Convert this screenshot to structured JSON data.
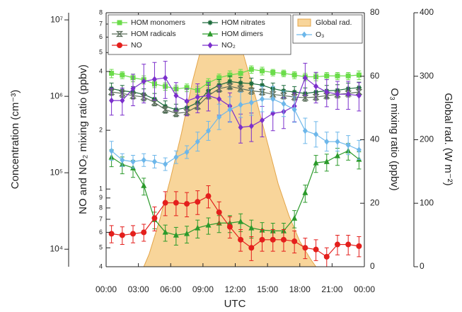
{
  "chart_data": {
    "type": "line",
    "xlabel": "UTC",
    "ylabel": "Concentration (cm⁻³)",
    "y2label": "NO and NO₂ mixing ratio (ppbv)",
    "y3label": "O₃ mixing ratio (ppbv)",
    "y4label": "Global rad. (W m⁻²)",
    "xlim": [
      0,
      24
    ],
    "xticks": [
      {
        "value": 0,
        "label": "00:00"
      },
      {
        "value": 3,
        "label": "03:00"
      },
      {
        "value": 6,
        "label": "06:00"
      },
      {
        "value": 9,
        "label": "09:00"
      },
      {
        "value": 12,
        "label": "12:00"
      },
      {
        "value": 15,
        "label": "15:00"
      },
      {
        "value": 18,
        "label": "18:00"
      },
      {
        "value": 21,
        "label": "21:00"
      },
      {
        "value": 24,
        "label": "00:00"
      }
    ],
    "ylim": [
      5900,
      12400000
    ],
    "ylog": true,
    "yticks": [
      {
        "value": 10000,
        "label": "10⁴"
      },
      {
        "value": 100000,
        "label": "10⁵"
      },
      {
        "value": 1000000,
        "label": "10⁶"
      },
      {
        "value": 10000000,
        "label": "10⁷"
      }
    ],
    "y2lim": [
      0.4,
      8
    ],
    "y2log": true,
    "y2ticks": [
      {
        "value": 0.4,
        "label": "4"
      },
      {
        "value": 0.5,
        "label": "5"
      },
      {
        "value": 0.6,
        "label": "6"
      },
      {
        "value": 0.7,
        "label": "7"
      },
      {
        "value": 0.8,
        "label": "8"
      },
      {
        "value": 0.9,
        "label": "9"
      },
      1,
      2,
      4,
      5,
      6,
      7,
      8
    ],
    "y3lim": [
      0,
      80
    ],
    "y3ticks": [
      0,
      20,
      40,
      60,
      80
    ],
    "y4lim": [
      0,
      400
    ],
    "y4ticks": [
      0,
      100,
      200,
      300,
      400
    ],
    "x": [
      0.5,
      1.5,
      2.5,
      3.5,
      4.5,
      5.5,
      6.5,
      7.5,
      8.5,
      9.5,
      10.5,
      11.5,
      12.5,
      13.5,
      14.5,
      15.5,
      16.5,
      17.5,
      18.5,
      19.5,
      20.5,
      21.5,
      22.5,
      23.5
    ],
    "series": [
      {
        "name": "Global rad.",
        "type": "area",
        "axis": "y4",
        "color": "#e3a54a",
        "fill": "#f8d59a",
        "x": [
          3.5,
          4,
          5,
          6,
          7,
          8,
          9,
          9.7,
          10.5,
          11,
          12,
          12.5,
          13,
          14,
          15,
          16,
          17,
          18,
          19,
          19.5
        ],
        "values": [
          0,
          20,
          75,
          140,
          210,
          290,
          355,
          395,
          380,
          340,
          355,
          350,
          320,
          260,
          195,
          130,
          80,
          40,
          12,
          0
        ]
      },
      {
        "name": "HOM monomers",
        "axis": "y",
        "marker": "square",
        "color": "#6bdc4a",
        "values": [
          2000000,
          1900000,
          1750000,
          1650000,
          1450000,
          1350000,
          1250000,
          1300000,
          1200000,
          1500000,
          1750000,
          1900000,
          2000000,
          2250000,
          2150000,
          2050000,
          2000000,
          1900000,
          1800000,
          1800000,
          1850000,
          1850000,
          1850000,
          1900000
        ],
        "errors": [
          250000,
          200000,
          200000,
          200000,
          150000,
          150000,
          150000,
          150000,
          150000,
          200000,
          200000,
          250000,
          250000,
          250000,
          250000,
          200000,
          200000,
          200000,
          200000,
          200000,
          200000,
          200000,
          200000,
          250000
        ]
      },
      {
        "name": "HOM nitrates",
        "axis": "y",
        "marker": "asterisk",
        "color": "#1d6b3c",
        "values": [
          1260000,
          1180000,
          1140000,
          1060000,
          920000,
          740000,
          670000,
          710000,
          830000,
          1180000,
          1400000,
          1560000,
          1500000,
          1470000,
          1400000,
          1260000,
          1180000,
          1140000,
          1090000,
          1140000,
          1180000,
          1200000,
          1260000,
          1300000
        ],
        "errors": [
          230000,
          210000,
          200000,
          190000,
          170000,
          130000,
          120000,
          130000,
          150000,
          210000,
          250000,
          280000,
          270000,
          260000,
          250000,
          230000,
          210000,
          200000,
          200000,
          200000,
          210000,
          220000,
          230000,
          230000
        ]
      },
      {
        "name": "HOM radicals",
        "axis": "y",
        "marker": "hourglass",
        "color": "#5b6e5b",
        "values": [
          1140000,
          1090000,
          1020000,
          980000,
          830000,
          670000,
          600000,
          620000,
          740000,
          1020000,
          1260000,
          1350000,
          1260000,
          1180000,
          1140000,
          1060000,
          1020000,
          980000,
          960000,
          980000,
          1020000,
          1060000,
          1090000,
          1140000
        ],
        "errors": [
          110000,
          110000,
          100000,
          100000,
          80000,
          70000,
          60000,
          60000,
          70000,
          100000,
          130000,
          130000,
          130000,
          120000,
          110000,
          110000,
          100000,
          100000,
          100000,
          100000,
          100000,
          110000,
          110000,
          110000
        ]
      },
      {
        "name": "HOM dimers",
        "axis": "y",
        "marker": "triangle",
        "color": "#2b9a2b",
        "values": [
          160000,
          129000,
          116000,
          68000,
          24500,
          16700,
          15300,
          16000,
          19000,
          20700,
          22000,
          22000,
          23000,
          19000,
          17800,
          17400,
          17400,
          25500,
          55000,
          135000,
          140000,
          167000,
          194000,
          150000
        ],
        "errors": [
          40000,
          32000,
          29000,
          17000,
          6000,
          4000,
          4000,
          4000,
          5000,
          5000,
          5500,
          5500,
          6000,
          5000,
          4500,
          4500,
          4500,
          6500,
          14000,
          34000,
          35000,
          42000,
          48000,
          38000
        ]
      },
      {
        "name": "NO",
        "axis": "y2",
        "marker": "circle",
        "color": "#e41f1c",
        "values": [
          0.59,
          0.58,
          0.59,
          0.6,
          0.71,
          0.85,
          0.85,
          0.84,
          0.86,
          0.92,
          0.76,
          0.64,
          0.55,
          0.5,
          0.55,
          0.55,
          0.55,
          0.54,
          0.5,
          0.49,
          0.45,
          0.52,
          0.52,
          0.51
        ],
        "errors": [
          0.06,
          0.06,
          0.06,
          0.06,
          0.1,
          0.12,
          0.12,
          0.12,
          0.12,
          0.12,
          0.1,
          0.08,
          0.07,
          0.07,
          0.07,
          0.07,
          0.07,
          0.07,
          0.06,
          0.06,
          0.05,
          0.06,
          0.06,
          0.06
        ]
      },
      {
        "name": "NO₂",
        "axis": "y2",
        "marker": "diamond",
        "color": "#7b2fcc",
        "values": [
          2.84,
          2.84,
          3.27,
          3.56,
          3.65,
          3.71,
          3.01,
          2.82,
          2.96,
          3.01,
          2.89,
          2.66,
          2.07,
          2.1,
          2.25,
          2.44,
          2.49,
          2.66,
          3.71,
          3.36,
          3.14,
          3.06,
          3.06,
          3.01
        ],
        "errors": [
          0.45,
          0.45,
          0.6,
          0.8,
          0.8,
          0.8,
          0.5,
          0.45,
          0.5,
          0.5,
          0.5,
          0.45,
          0.35,
          0.35,
          0.4,
          0.45,
          0.45,
          0.45,
          0.7,
          0.6,
          0.5,
          0.5,
          0.5,
          0.5
        ]
      },
      {
        "name": "O₃",
        "axis": "y3",
        "marker": "diamond",
        "color": "#6db7ea",
        "values": [
          36.5,
          33.6,
          33.1,
          33.6,
          33.1,
          32.3,
          34.5,
          36.1,
          39.4,
          42.8,
          47.2,
          49.5,
          51.0,
          51.7,
          52.8,
          52.8,
          51.3,
          49.5,
          42.8,
          41.7,
          39.4,
          39.4,
          38.3,
          36.8
        ],
        "errors": [
          3,
          2,
          2,
          2,
          2,
          2,
          2,
          2,
          3,
          3,
          4,
          4,
          4,
          4,
          4,
          4,
          4,
          4,
          4,
          4,
          3,
          3,
          3,
          3
        ]
      }
    ]
  }
}
